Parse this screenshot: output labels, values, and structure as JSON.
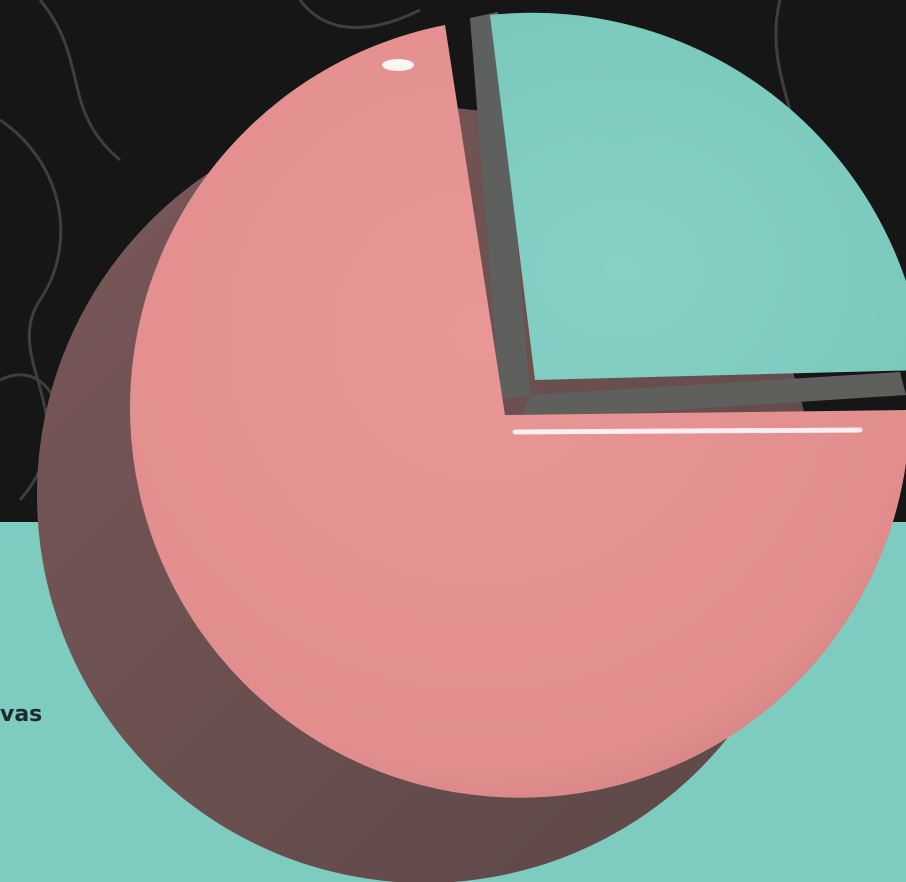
{
  "page": {
    "caption_fragment": "vas"
  }
}
